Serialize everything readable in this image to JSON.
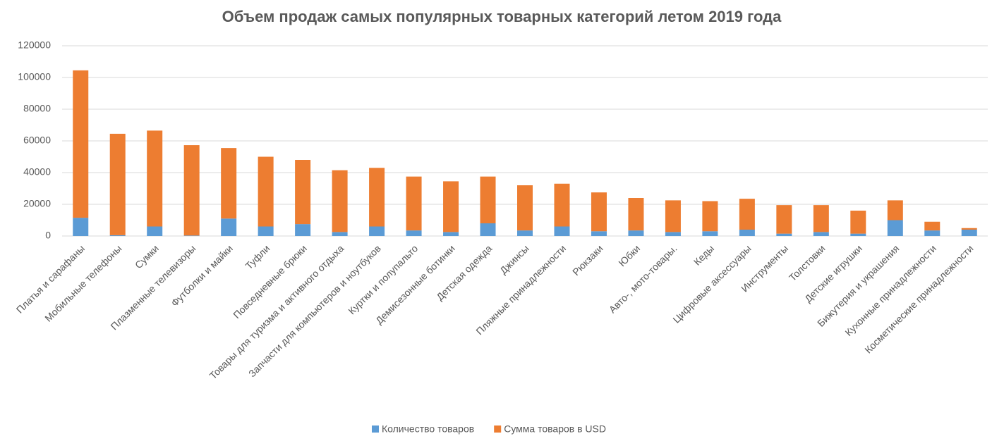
{
  "chart_data": {
    "type": "stacked_bar",
    "title": "Объем продаж самых популярных товарных категорий летом 2019 года",
    "categories": [
      "Платья и сарафаны",
      "Мобильные телефоны",
      "Сумки",
      "Плазменные телевизоры",
      "Футболки и майки",
      "Туфли",
      "Повседневные брюки",
      "Товары для туризма и активного отдыха",
      "Запчасти для компьютеров и ноутбуков",
      "Куртки и полупальто",
      "Демисезонные ботинки",
      "Детская одежда",
      "Джинсы",
      "Пляжные принадлежности",
      "Рюкзаки",
      "Юбки",
      "Авто-, мото-товары.",
      "Кеды",
      "Цифровые аксессуары",
      "Инструменты",
      "Толстовки",
      "Детские игрушки",
      "Бижутерия и украшения",
      "Кухонные принадлежности",
      "Косметические принадлежности"
    ],
    "series": [
      {
        "name": "Количество товаров",
        "color": "#5b9bd5",
        "values": [
          11500,
          500,
          6000,
          300,
          11000,
          6000,
          7500,
          2500,
          6000,
          3500,
          2500,
          8000,
          3500,
          6000,
          3000,
          3500,
          2500,
          3000,
          4000,
          1500,
          2500,
          1500,
          10000,
          3500,
          4000
        ]
      },
      {
        "name": "Сумма товаров в USD",
        "color": "#ed7d31",
        "values": [
          93000,
          64000,
          60500,
          57000,
          44500,
          44000,
          40500,
          39000,
          37000,
          34000,
          32000,
          29500,
          28500,
          27000,
          24500,
          20500,
          20000,
          19000,
          19500,
          18000,
          17000,
          14500,
          12500,
          5500,
          1000
        ]
      }
    ],
    "ylim": [
      0,
      120000
    ],
    "yticks": [
      0,
      20000,
      40000,
      60000,
      80000,
      100000,
      120000
    ],
    "grid": true,
    "legend": "bottom"
  }
}
